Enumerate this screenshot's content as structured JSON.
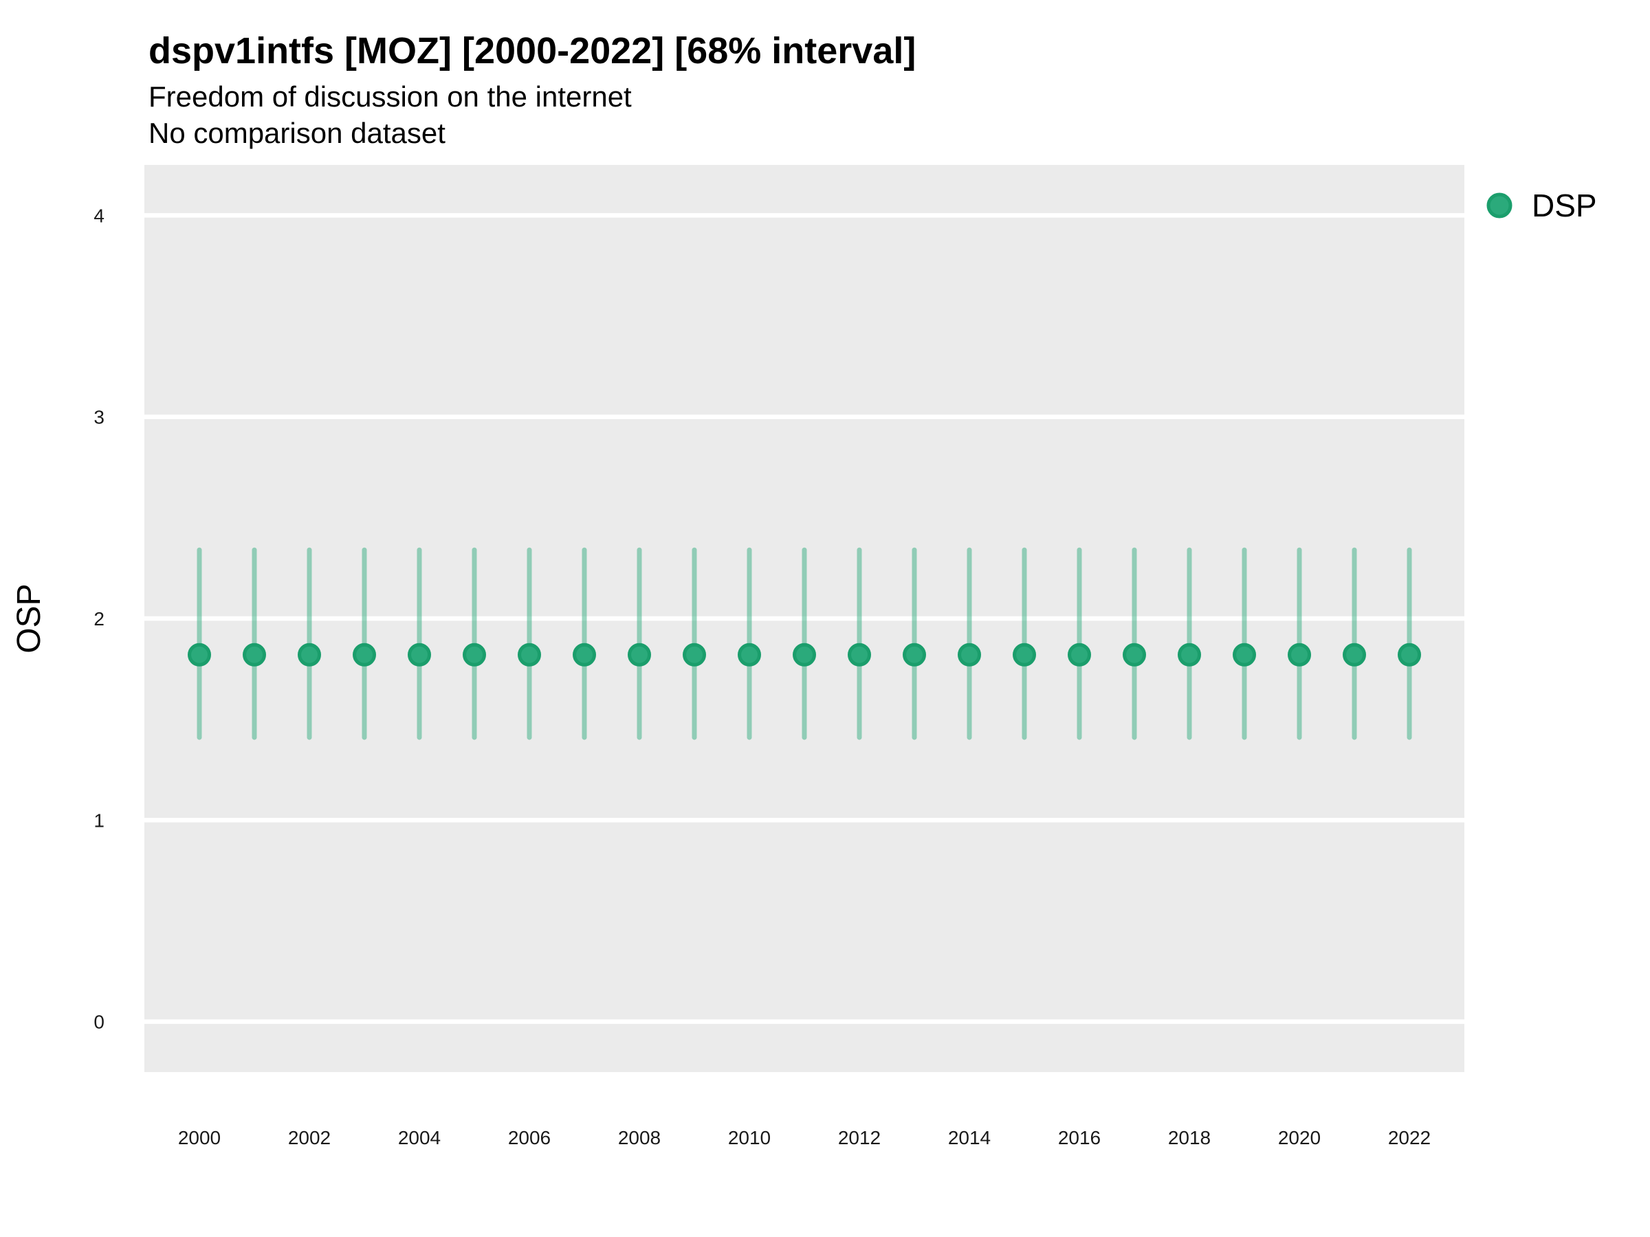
{
  "header": {
    "title": "dspv1intfs [MOZ] [2000-2022] [68% interval]",
    "subtitle": "Freedom of discussion on the internet",
    "caption": "No comparison dataset"
  },
  "axes": {
    "y_label": "OSP",
    "x_label": ""
  },
  "legend": {
    "label": "DSP",
    "position": "right"
  },
  "colors": {
    "panel_background": "#EBEBEB",
    "gridline": "#FFFFFF",
    "point_fill": "#2BAA7B",
    "point_stroke": "#1B9E6C",
    "interval_line": "#2BA97B",
    "text": "#000000"
  },
  "chart_data": {
    "type": "pointrange",
    "title": "dspv1intfs [MOZ] [2000-2022] [68% interval]",
    "subtitle": "Freedom of discussion on the internet",
    "caption": "No comparison dataset",
    "xlabel": "",
    "ylabel": "OSP",
    "xlim": [
      1999,
      2023
    ],
    "ylim": [
      -0.25,
      4.25
    ],
    "y_ticks": [
      0,
      1,
      2,
      3,
      4
    ],
    "x_ticks": [
      2000,
      2002,
      2004,
      2006,
      2008,
      2010,
      2012,
      2014,
      2016,
      2018,
      2020,
      2022
    ],
    "grid": "horizontal-major-only",
    "legend_position": "right",
    "series_name": "DSP",
    "interval_level": "68%",
    "points": [
      {
        "year": 2000,
        "value": 1.82,
        "low": 1.41,
        "high": 2.34
      },
      {
        "year": 2001,
        "value": 1.82,
        "low": 1.41,
        "high": 2.34
      },
      {
        "year": 2002,
        "value": 1.82,
        "low": 1.41,
        "high": 2.34
      },
      {
        "year": 2003,
        "value": 1.82,
        "low": 1.41,
        "high": 2.34
      },
      {
        "year": 2004,
        "value": 1.82,
        "low": 1.41,
        "high": 2.34
      },
      {
        "year": 2005,
        "value": 1.82,
        "low": 1.41,
        "high": 2.34
      },
      {
        "year": 2006,
        "value": 1.82,
        "low": 1.41,
        "high": 2.34
      },
      {
        "year": 2007,
        "value": 1.82,
        "low": 1.41,
        "high": 2.34
      },
      {
        "year": 2008,
        "value": 1.82,
        "low": 1.41,
        "high": 2.34
      },
      {
        "year": 2009,
        "value": 1.82,
        "low": 1.41,
        "high": 2.34
      },
      {
        "year": 2010,
        "value": 1.82,
        "low": 1.41,
        "high": 2.34
      },
      {
        "year": 2011,
        "value": 1.82,
        "low": 1.41,
        "high": 2.34
      },
      {
        "year": 2012,
        "value": 1.82,
        "low": 1.41,
        "high": 2.34
      },
      {
        "year": 2013,
        "value": 1.82,
        "low": 1.41,
        "high": 2.34
      },
      {
        "year": 2014,
        "value": 1.82,
        "low": 1.41,
        "high": 2.34
      },
      {
        "year": 2015,
        "value": 1.82,
        "low": 1.41,
        "high": 2.34
      },
      {
        "year": 2016,
        "value": 1.82,
        "low": 1.41,
        "high": 2.34
      },
      {
        "year": 2017,
        "value": 1.82,
        "low": 1.41,
        "high": 2.34
      },
      {
        "year": 2018,
        "value": 1.82,
        "low": 1.41,
        "high": 2.34
      },
      {
        "year": 2019,
        "value": 1.82,
        "low": 1.41,
        "high": 2.34
      },
      {
        "year": 2020,
        "value": 1.82,
        "low": 1.41,
        "high": 2.34
      },
      {
        "year": 2021,
        "value": 1.82,
        "low": 1.41,
        "high": 2.34
      },
      {
        "year": 2022,
        "value": 1.82,
        "low": 1.41,
        "high": 2.34
      }
    ]
  }
}
